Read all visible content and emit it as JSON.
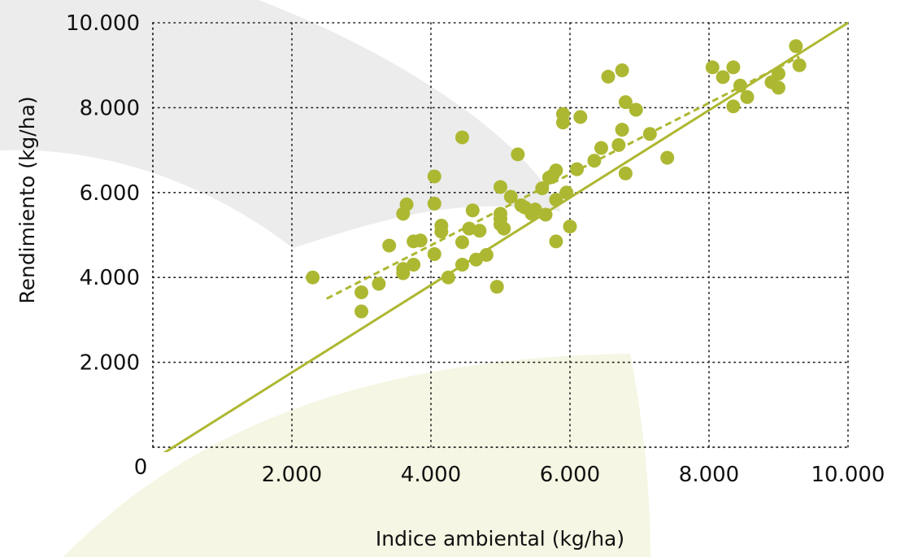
{
  "chart_data": {
    "type": "scatter",
    "xlabel": "Indice ambiental (kg/ha)",
    "ylabel": "Rendimiento (kg/ha)",
    "xlim": [
      0,
      10000
    ],
    "ylim": [
      0,
      10000
    ],
    "x_ticks": [
      "0",
      "2.000",
      "4.000",
      "6.000",
      "8.000",
      "10.000"
    ],
    "y_ticks": [
      "2.000",
      "4.000",
      "6.000",
      "8.000",
      "10.000"
    ],
    "grid": true,
    "colors": {
      "points": "#adb832",
      "lines": "#adb832",
      "background_shape_gray": "#ececec",
      "background_shape_green": "#f5f6e3"
    },
    "lines": [
      {
        "style": "solid",
        "x": [
          0,
          10000
        ],
        "y": [
          -300,
          10000
        ]
      },
      {
        "style": "dashed",
        "x": [
          2500,
          9300
        ],
        "y": [
          3500,
          9200
        ]
      }
    ],
    "points": [
      {
        "x": 2300,
        "y": 4000
      },
      {
        "x": 3000,
        "y": 3200
      },
      {
        "x": 3000,
        "y": 3650
      },
      {
        "x": 3250,
        "y": 3850
      },
      {
        "x": 3400,
        "y": 4750
      },
      {
        "x": 3600,
        "y": 4100
      },
      {
        "x": 3600,
        "y": 4200
      },
      {
        "x": 3600,
        "y": 5500
      },
      {
        "x": 3650,
        "y": 5720
      },
      {
        "x": 3750,
        "y": 4300
      },
      {
        "x": 3750,
        "y": 4850
      },
      {
        "x": 3850,
        "y": 4870
      },
      {
        "x": 4050,
        "y": 6380
      },
      {
        "x": 4050,
        "y": 5740
      },
      {
        "x": 4050,
        "y": 4550
      },
      {
        "x": 4150,
        "y": 5220
      },
      {
        "x": 4150,
        "y": 5080
      },
      {
        "x": 4250,
        "y": 4000
      },
      {
        "x": 4450,
        "y": 7300
      },
      {
        "x": 4450,
        "y": 4830
      },
      {
        "x": 4450,
        "y": 4300
      },
      {
        "x": 4550,
        "y": 5150
      },
      {
        "x": 4600,
        "y": 5580
      },
      {
        "x": 4650,
        "y": 4420
      },
      {
        "x": 4700,
        "y": 5100
      },
      {
        "x": 4800,
        "y": 4530
      },
      {
        "x": 4950,
        "y": 3780
      },
      {
        "x": 5000,
        "y": 6130
      },
      {
        "x": 5000,
        "y": 5500
      },
      {
        "x": 5000,
        "y": 5380
      },
      {
        "x": 5000,
        "y": 5250
      },
      {
        "x": 5050,
        "y": 5150
      },
      {
        "x": 5150,
        "y": 5900
      },
      {
        "x": 5250,
        "y": 6900
      },
      {
        "x": 5300,
        "y": 5700
      },
      {
        "x": 5350,
        "y": 5650
      },
      {
        "x": 5450,
        "y": 5500
      },
      {
        "x": 5500,
        "y": 5600
      },
      {
        "x": 5600,
        "y": 6100
      },
      {
        "x": 5650,
        "y": 5480
      },
      {
        "x": 5700,
        "y": 6350
      },
      {
        "x": 5750,
        "y": 6400
      },
      {
        "x": 5800,
        "y": 6520
      },
      {
        "x": 5800,
        "y": 5830
      },
      {
        "x": 5800,
        "y": 4850
      },
      {
        "x": 5900,
        "y": 7850
      },
      {
        "x": 5900,
        "y": 7650
      },
      {
        "x": 5950,
        "y": 6000
      },
      {
        "x": 6000,
        "y": 5200
      },
      {
        "x": 6100,
        "y": 6550
      },
      {
        "x": 6150,
        "y": 7780
      },
      {
        "x": 6350,
        "y": 6750
      },
      {
        "x": 6450,
        "y": 7050
      },
      {
        "x": 6550,
        "y": 8730
      },
      {
        "x": 6700,
        "y": 7120
      },
      {
        "x": 6750,
        "y": 8880
      },
      {
        "x": 6750,
        "y": 7480
      },
      {
        "x": 6800,
        "y": 8130
      },
      {
        "x": 6800,
        "y": 6450
      },
      {
        "x": 6950,
        "y": 7950
      },
      {
        "x": 7150,
        "y": 7380
      },
      {
        "x": 7400,
        "y": 6820
      },
      {
        "x": 8050,
        "y": 8950
      },
      {
        "x": 8200,
        "y": 8720
      },
      {
        "x": 8350,
        "y": 8950
      },
      {
        "x": 8350,
        "y": 8030
      },
      {
        "x": 8450,
        "y": 8520
      },
      {
        "x": 8550,
        "y": 8250
      },
      {
        "x": 8900,
        "y": 8600
      },
      {
        "x": 9000,
        "y": 8800
      },
      {
        "x": 9000,
        "y": 8470
      },
      {
        "x": 9250,
        "y": 9450
      },
      {
        "x": 9300,
        "y": 9000
      }
    ]
  }
}
